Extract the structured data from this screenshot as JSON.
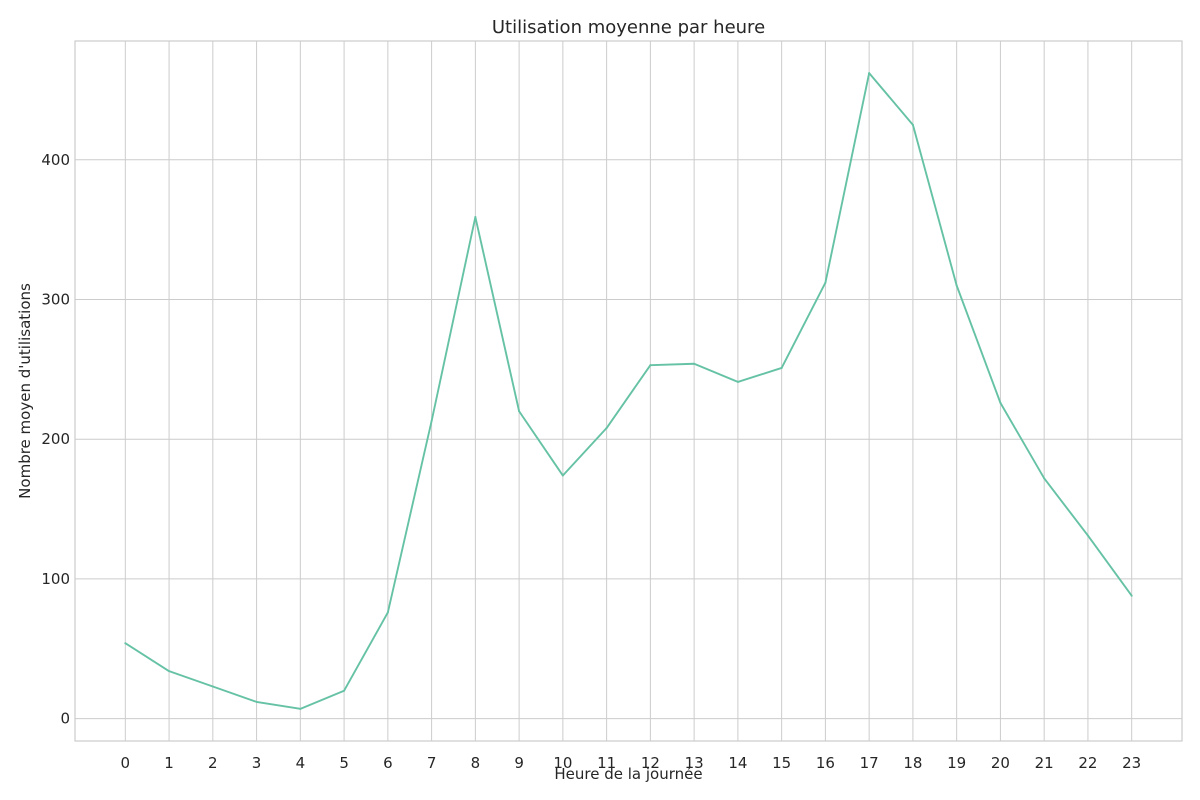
{
  "chart_data": {
    "type": "line",
    "title": "Utilisation moyenne par heure",
    "xlabel": "Heure de la journée",
    "ylabel": "Nombre moyen d'utilisations",
    "x": [
      0,
      1,
      2,
      3,
      4,
      5,
      6,
      7,
      8,
      9,
      10,
      11,
      12,
      13,
      14,
      15,
      16,
      17,
      18,
      19,
      20,
      21,
      22,
      23
    ],
    "series": [
      {
        "values": [
          54,
          34,
          23,
          12,
          7,
          20,
          76,
          213,
          359,
          220,
          174,
          208,
          253,
          254,
          241,
          251,
          312,
          462,
          425,
          310,
          226,
          172,
          131,
          88
        ],
        "color": "#66c2a5"
      }
    ],
    "xlim": [
      -1.15,
      24.15
    ],
    "ylim": [
      -16,
      485
    ],
    "yticks": [
      0,
      100,
      200,
      300,
      400
    ],
    "grid": true,
    "legend": "none"
  }
}
